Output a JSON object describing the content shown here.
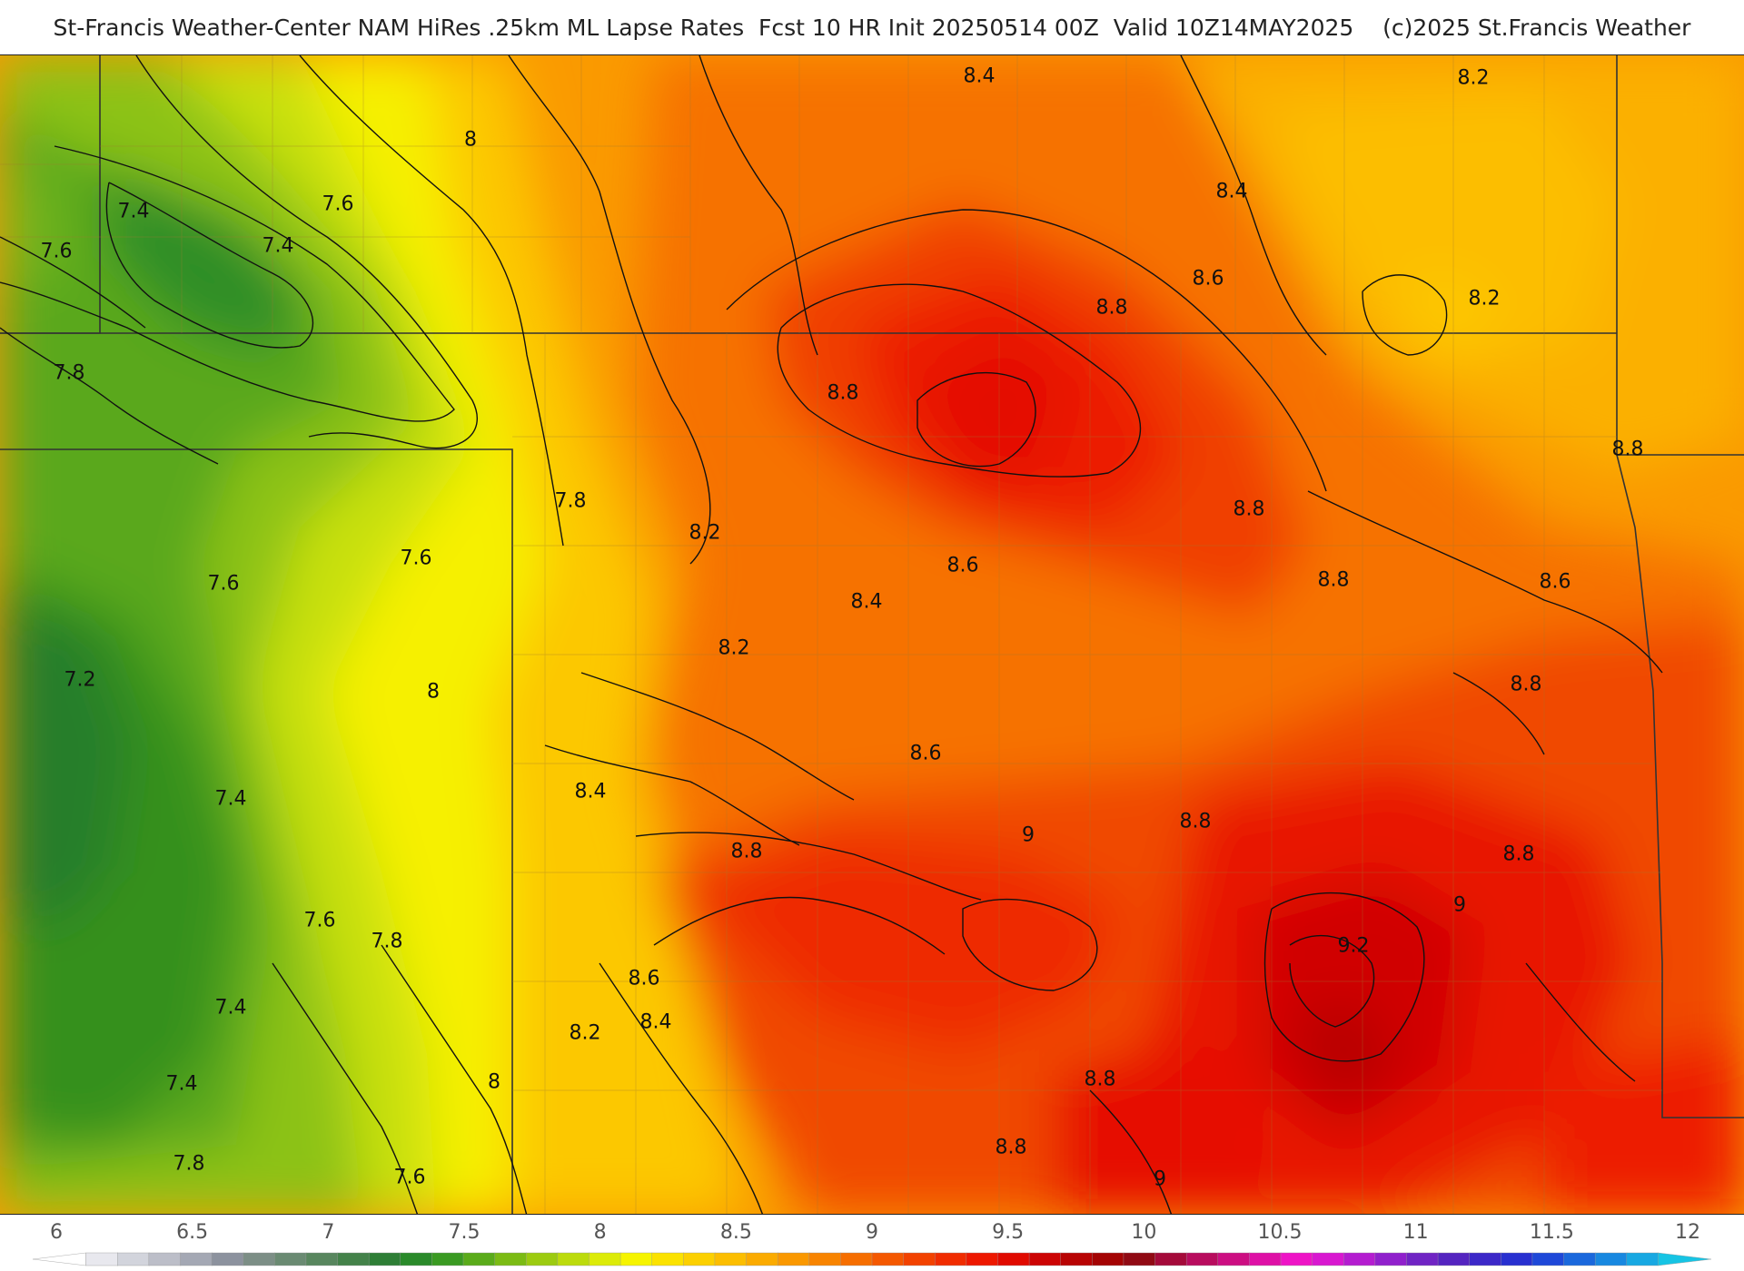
{
  "title": "St-Francis Weather-Center NAM HiRes .25km ML Lapse Rates  Fcst 10 HR Init 20250514 00Z  Valid 10Z14MAY2025    (c)2025 St.Francis Weather",
  "map": {
    "field": "ML Lapse Rates",
    "contour_labels": [
      "7.4",
      "7.6",
      "7.4",
      "7.6",
      "8",
      "8.4",
      "8.2",
      "8.4",
      "8.2",
      "8.6",
      "8.8",
      "7.8",
      "8.8",
      "8.8",
      "8.6",
      "8.4",
      "8.2",
      "8.8",
      "7.8",
      "7.6",
      "8.6",
      "8.2",
      "8.8",
      "8.8",
      "7.6",
      "7.2",
      "8.4",
      "8.6",
      "8",
      "8.8",
      "7.4",
      "9",
      "8.8",
      "9",
      "8.8",
      "7.6",
      "7.8",
      "9.2",
      "8.6",
      "8.4",
      "8.2",
      "7.4",
      "8",
      "8.8",
      "7.4",
      "8.8",
      "7.8",
      "7.6",
      "9"
    ]
  },
  "colorbar": {
    "ticks": [
      "6",
      "6.5",
      "7",
      "7.5",
      "8",
      "8.5",
      "9",
      "9.5",
      "10",
      "10.5",
      "11",
      "11.5",
      "12"
    ],
    "colors": [
      "#ffffff",
      "#e8e8ee",
      "#d2d4dc",
      "#bcbec8",
      "#a4a8b4",
      "#8c929e",
      "#7c8e86",
      "#6a8a72",
      "#58865e",
      "#44824a",
      "#2e7e36",
      "#2a8a2a",
      "#3a9a22",
      "#5aab1a",
      "#7bbb14",
      "#9ccb10",
      "#bcdb0c",
      "#dceb08",
      "#f6f400",
      "#fbe200",
      "#fcd000",
      "#fcbe00",
      "#fbab00",
      "#fa9800",
      "#f88400",
      "#f66e00",
      "#f45800",
      "#f24200",
      "#f02c00",
      "#ed1800",
      "#e00a00",
      "#cc0404",
      "#b80404",
      "#a40404",
      "#900a14",
      "#a40a3a",
      "#b80c5e",
      "#cc0e82",
      "#de10a6",
      "#ee14c6",
      "#d818d0",
      "#b41cd0",
      "#9020cc",
      "#7024c4",
      "#5424c0",
      "#3c28c8",
      "#2830d0",
      "#1e48d8",
      "#1a68dc",
      "#1888e0",
      "#18a8e2",
      "#16c4e4"
    ]
  }
}
